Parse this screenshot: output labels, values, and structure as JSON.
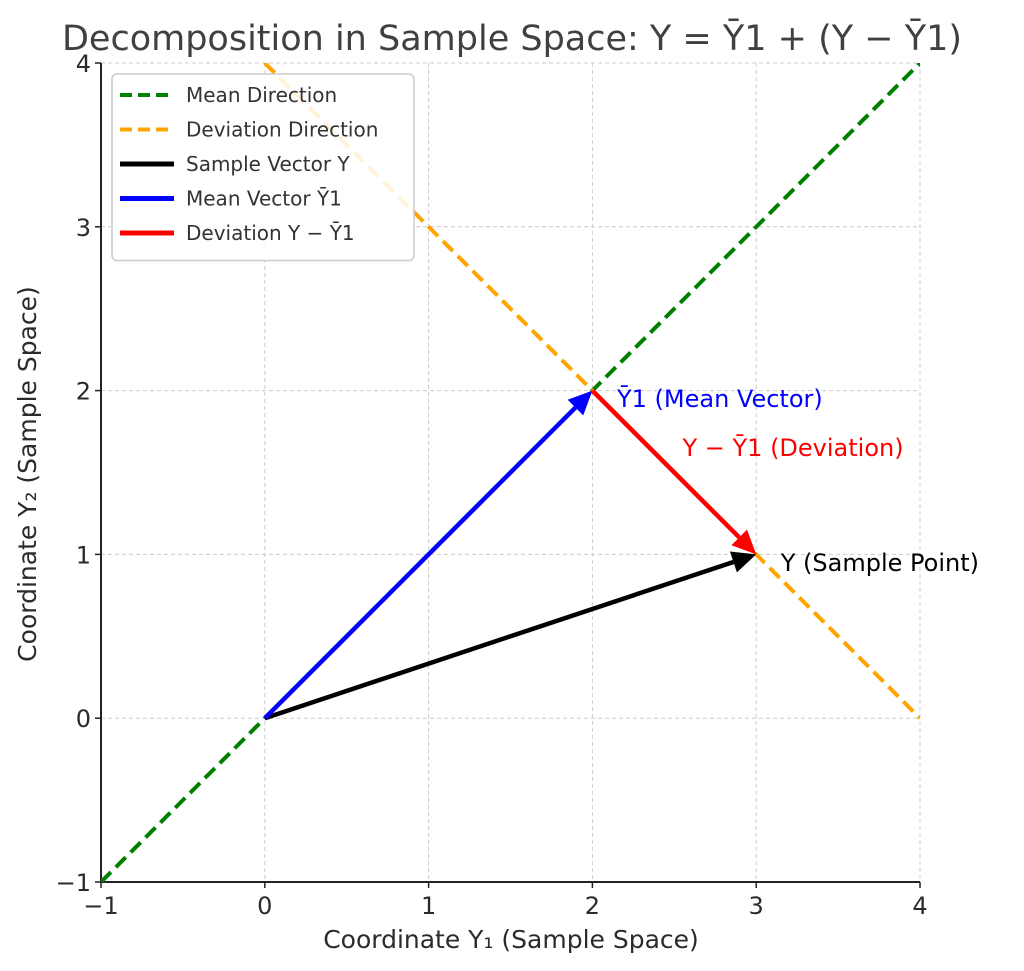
{
  "chart_data": {
    "type": "line",
    "title": "Decomposition in Sample Space:  Y = Ȳ1 + (Y − Ȳ1)",
    "xlabel": "Coordinate Y₁ (Sample Space)",
    "ylabel": "Coordinate Y₂ (Sample Space)",
    "xlim": [
      -1,
      4
    ],
    "ylim": [
      -1,
      4
    ],
    "xticks": [
      -1,
      0,
      1,
      2,
      3,
      4
    ],
    "yticks": [
      -1,
      0,
      1,
      2,
      3,
      4
    ],
    "xtick_labels": [
      "−1",
      "0",
      "1",
      "2",
      "3",
      "4"
    ],
    "ytick_labels": [
      "−1",
      "0",
      "1",
      "2",
      "3",
      "4"
    ],
    "grid": true,
    "legend_position": "top-left",
    "series": [
      {
        "name": "Mean Direction",
        "style": "dashed",
        "color": "#008000",
        "x": [
          -1,
          4
        ],
        "y": [
          -1,
          4
        ]
      },
      {
        "name": "Deviation Direction",
        "style": "dashed",
        "color": "#FFA500",
        "x": [
          0,
          4
        ],
        "y": [
          4,
          0
        ]
      },
      {
        "name": "Sample Vector Y",
        "style": "arrow",
        "color": "#000000",
        "x": [
          0,
          3
        ],
        "y": [
          0,
          1
        ]
      },
      {
        "name": "Mean Vector Ȳ1",
        "style": "arrow",
        "color": "#0000FF",
        "x": [
          0,
          2
        ],
        "y": [
          0,
          2
        ]
      },
      {
        "name": "Deviation Y − Ȳ1",
        "style": "arrow",
        "color": "#FF0000",
        "x": [
          2,
          3
        ],
        "y": [
          2,
          1
        ]
      }
    ],
    "annotations": [
      {
        "text": "Ȳ1 (Mean Vector)",
        "x": 2.15,
        "y": 1.9,
        "color": "#0000FF"
      },
      {
        "text": "Y − Ȳ1 (Deviation)",
        "x": 2.55,
        "y": 1.6,
        "color": "#FF0000"
      },
      {
        "text": "Y (Sample Point)",
        "x": 3.15,
        "y": 0.9,
        "color": "#000000"
      }
    ]
  }
}
